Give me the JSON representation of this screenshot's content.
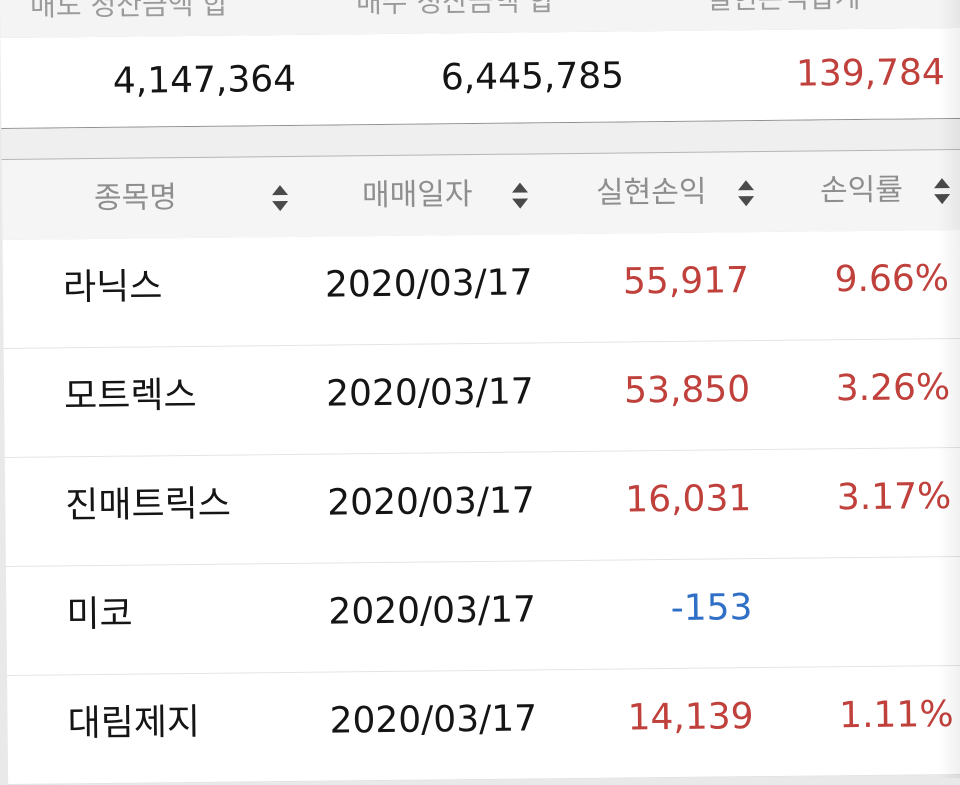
{
  "summary": {
    "headers": [
      "매도 정산금액 합",
      "매수 정산금액 합",
      "실현손익합계"
    ],
    "sell_total": "4,147,364",
    "buy_total": "6,445,785",
    "realized_total": "139,784"
  },
  "table": {
    "headers": [
      "종목명",
      "매매일자",
      "실현손익",
      "손익률"
    ],
    "sort_icon": "sort-icon",
    "rows": [
      {
        "name": "라닉스",
        "date": "2020/03/17",
        "pl": "55,917",
        "rate": "9.66%"
      },
      {
        "name": "모트렉스",
        "date": "2020/03/17",
        "pl": "53,850",
        "rate": "3.26%"
      },
      {
        "name": "진매트릭스",
        "date": "2020/03/17",
        "pl": "16,031",
        "rate": "3.17%"
      },
      {
        "name": "미코",
        "date": "2020/03/17",
        "pl": "-153",
        "rate": ""
      },
      {
        "name": "대림제지",
        "date": "2020/03/17",
        "pl": "14,139",
        "rate": "1.11%"
      }
    ]
  },
  "colors": {
    "profit": "#c0403c",
    "loss": "#2f6fc6",
    "header_text": "#8e8e8e"
  }
}
